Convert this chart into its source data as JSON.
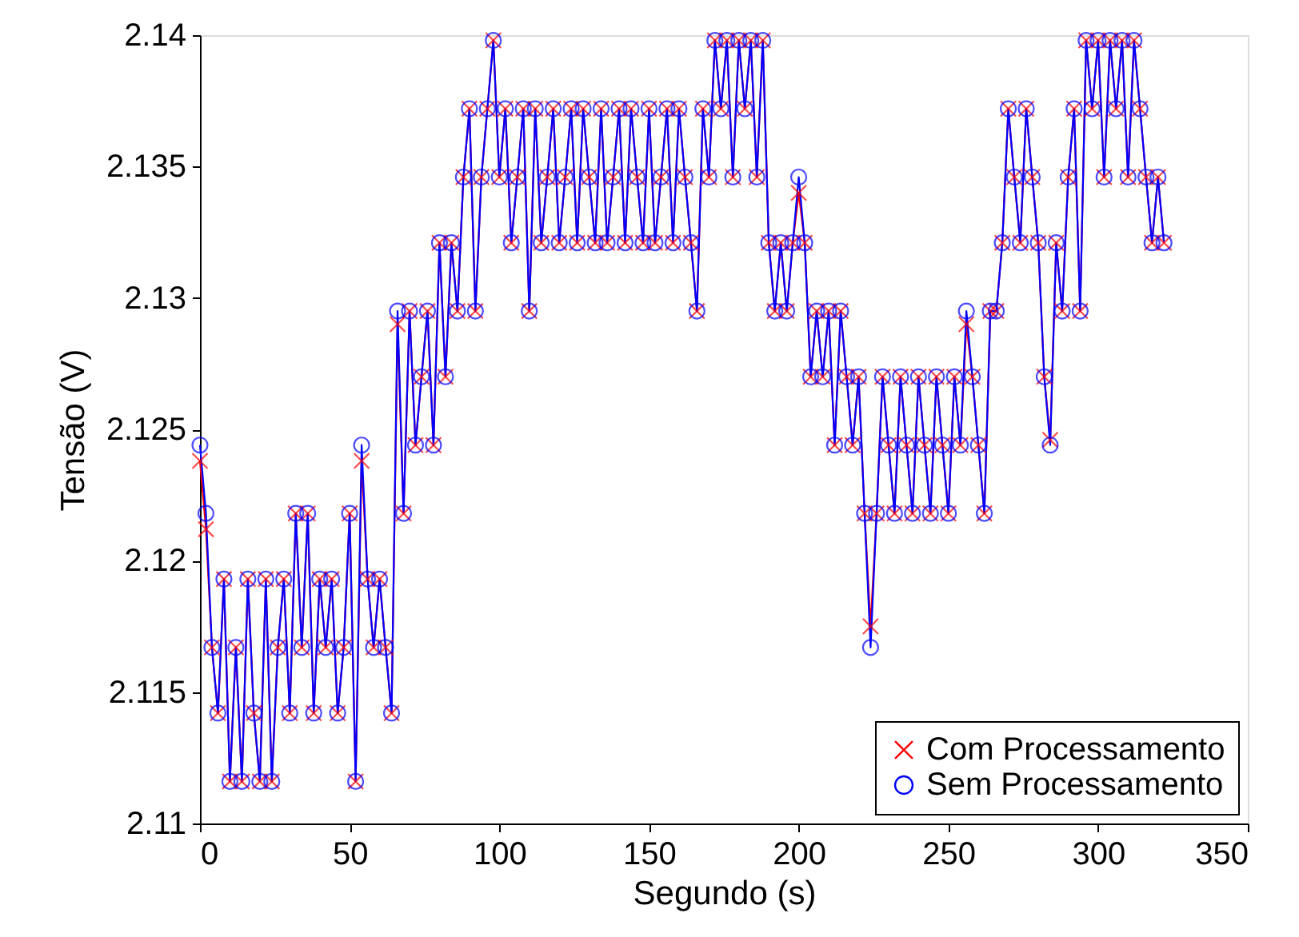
{
  "chart_data": {
    "type": "line",
    "xlabel": "Segundo (s)",
    "ylabel": "Tensão (V)",
    "x": [
      0,
      2,
      4,
      6,
      8,
      10,
      12,
      14,
      16,
      18,
      20,
      22,
      24,
      26,
      28,
      30,
      32,
      34,
      36,
      38,
      40,
      42,
      44,
      46,
      48,
      50,
      52,
      54,
      56,
      58,
      60,
      62,
      64,
      66,
      68,
      70,
      72,
      74,
      76,
      78,
      80,
      82,
      84,
      86,
      88,
      90,
      92,
      94,
      96,
      98,
      100,
      102,
      104,
      106,
      108,
      110,
      112,
      114,
      116,
      118,
      120,
      122,
      124,
      126,
      128,
      130,
      132,
      134,
      136,
      138,
      140,
      142,
      144,
      146,
      148,
      150,
      152,
      154,
      156,
      158,
      160,
      162,
      164,
      166,
      168,
      170,
      172,
      174,
      176,
      178,
      180,
      182,
      184,
      186,
      188,
      190,
      192,
      194,
      196,
      198,
      200,
      202,
      204,
      206,
      208,
      210,
      212,
      214,
      216,
      218,
      220,
      222,
      224,
      226,
      228,
      230,
      232,
      234,
      236,
      238,
      240,
      242,
      244,
      246,
      248,
      250,
      252,
      254,
      256,
      258,
      260,
      262,
      264,
      266,
      268,
      270,
      272,
      274,
      276,
      278,
      280,
      282,
      284,
      286,
      288,
      290,
      292,
      294,
      296,
      298,
      300,
      302,
      304,
      306,
      308,
      310,
      312,
      314,
      316,
      318,
      320,
      322
    ],
    "series": [
      {
        "name": "Com Processamento",
        "color": "#ff0000",
        "marker": "cross",
        "values": [
          2.1238,
          2.1212,
          2.1167,
          2.1142,
          2.1193,
          2.1116,
          2.1167,
          2.1116,
          2.1193,
          2.1142,
          2.1116,
          2.1193,
          2.1116,
          2.1167,
          2.1193,
          2.1142,
          2.1218,
          2.1167,
          2.1218,
          2.1142,
          2.1193,
          2.1167,
          2.1193,
          2.1142,
          2.1167,
          2.1218,
          2.1116,
          2.1238,
          2.1193,
          2.1167,
          2.1193,
          2.1167,
          2.1142,
          2.129,
          2.1218,
          2.1295,
          2.1244,
          2.127,
          2.1295,
          2.1244,
          2.1321,
          2.127,
          2.1321,
          2.1295,
          2.1346,
          2.1372,
          2.1295,
          2.1346,
          2.1372,
          2.1398,
          2.1346,
          2.1372,
          2.1321,
          2.1346,
          2.1372,
          2.1295,
          2.1372,
          2.1321,
          2.1346,
          2.1372,
          2.1321,
          2.1346,
          2.1372,
          2.1321,
          2.1372,
          2.1346,
          2.1321,
          2.1372,
          2.1321,
          2.1346,
          2.1372,
          2.1321,
          2.1372,
          2.1346,
          2.1321,
          2.1372,
          2.1321,
          2.1346,
          2.1372,
          2.1321,
          2.1372,
          2.1346,
          2.1321,
          2.1295,
          2.1372,
          2.1346,
          2.1398,
          2.1372,
          2.1398,
          2.1346,
          2.1398,
          2.1372,
          2.1398,
          2.1346,
          2.1398,
          2.1321,
          2.1295,
          2.1321,
          2.1295,
          2.1321,
          2.134,
          2.1321,
          2.127,
          2.1295,
          2.127,
          2.1295,
          2.1244,
          2.1295,
          2.127,
          2.1244,
          2.127,
          2.1218,
          2.1175,
          2.1218,
          2.127,
          2.1244,
          2.1218,
          2.127,
          2.1244,
          2.1218,
          2.127,
          2.1244,
          2.1218,
          2.127,
          2.1244,
          2.1218,
          2.127,
          2.1244,
          2.129,
          2.127,
          2.1244,
          2.1218,
          2.1295,
          2.1295,
          2.1321,
          2.1372,
          2.1346,
          2.1321,
          2.1372,
          2.1346,
          2.1321,
          2.127,
          2.1246,
          2.1321,
          2.1295,
          2.1346,
          2.1372,
          2.1295,
          2.1398,
          2.1372,
          2.1398,
          2.1346,
          2.1398,
          2.1372,
          2.1398,
          2.1346,
          2.1398,
          2.1372,
          2.1346,
          2.1321,
          2.1346,
          2.1321
        ]
      },
      {
        "name": "Sem Processamento",
        "color": "#0000ff",
        "marker": "circle",
        "values": [
          2.1244,
          2.1218,
          2.1167,
          2.1142,
          2.1193,
          2.1116,
          2.1167,
          2.1116,
          2.1193,
          2.1142,
          2.1116,
          2.1193,
          2.1116,
          2.1167,
          2.1193,
          2.1142,
          2.1218,
          2.1167,
          2.1218,
          2.1142,
          2.1193,
          2.1167,
          2.1193,
          2.1142,
          2.1167,
          2.1218,
          2.1116,
          2.1244,
          2.1193,
          2.1167,
          2.1193,
          2.1167,
          2.1142,
          2.1295,
          2.1218,
          2.1295,
          2.1244,
          2.127,
          2.1295,
          2.1244,
          2.1321,
          2.127,
          2.1321,
          2.1295,
          2.1346,
          2.1372,
          2.1295,
          2.1346,
          2.1372,
          2.1398,
          2.1346,
          2.1372,
          2.1321,
          2.1346,
          2.1372,
          2.1295,
          2.1372,
          2.1321,
          2.1346,
          2.1372,
          2.1321,
          2.1346,
          2.1372,
          2.1321,
          2.1372,
          2.1346,
          2.1321,
          2.1372,
          2.1321,
          2.1346,
          2.1372,
          2.1321,
          2.1372,
          2.1346,
          2.1321,
          2.1372,
          2.1321,
          2.1346,
          2.1372,
          2.1321,
          2.1372,
          2.1346,
          2.1321,
          2.1295,
          2.1372,
          2.1346,
          2.1398,
          2.1372,
          2.1398,
          2.1346,
          2.1398,
          2.1372,
          2.1398,
          2.1346,
          2.1398,
          2.1321,
          2.1295,
          2.1321,
          2.1295,
          2.1321,
          2.1346,
          2.1321,
          2.127,
          2.1295,
          2.127,
          2.1295,
          2.1244,
          2.1295,
          2.127,
          2.1244,
          2.127,
          2.1218,
          2.1167,
          2.1218,
          2.127,
          2.1244,
          2.1218,
          2.127,
          2.1244,
          2.1218,
          2.127,
          2.1244,
          2.1218,
          2.127,
          2.1244,
          2.1218,
          2.127,
          2.1244,
          2.1295,
          2.127,
          2.1244,
          2.1218,
          2.1295,
          2.1295,
          2.1321,
          2.1372,
          2.1346,
          2.1321,
          2.1372,
          2.1346,
          2.1321,
          2.127,
          2.1244,
          2.1321,
          2.1295,
          2.1346,
          2.1372,
          2.1295,
          2.1398,
          2.1372,
          2.1398,
          2.1346,
          2.1398,
          2.1372,
          2.1398,
          2.1346,
          2.1398,
          2.1372,
          2.1346,
          2.1321,
          2.1346,
          2.1321
        ]
      }
    ],
    "xlim": [
      0,
      350
    ],
    "xticks": [
      0,
      50,
      100,
      150,
      200,
      250,
      300,
      350
    ],
    "ylim": [
      2.11,
      2.14
    ],
    "yticks": [
      2.11,
      2.115,
      2.12,
      2.125,
      2.13,
      2.135,
      2.14
    ],
    "legend": "bottom right",
    "grid": false,
    "line_style": "solid"
  }
}
